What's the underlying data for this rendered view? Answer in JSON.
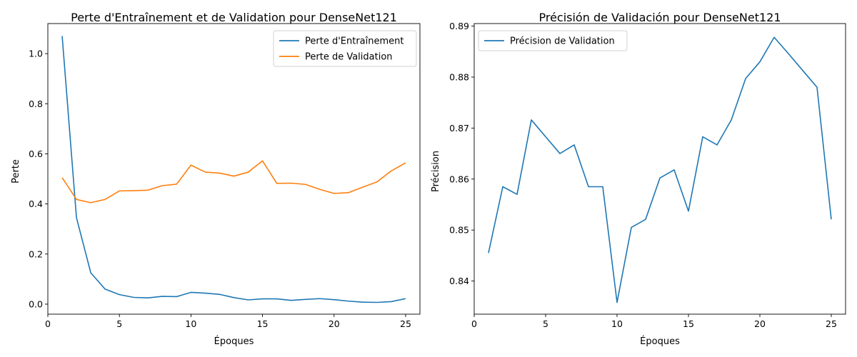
{
  "chart_data": [
    {
      "type": "line",
      "title": "Perte d'Entraînement et de Validation pour DenseNet121",
      "xlabel": "Époques",
      "ylabel": "Perte",
      "xlim": [
        0,
        26
      ],
      "ylim": [
        -0.04,
        1.12
      ],
      "xticks": [
        0,
        5,
        10,
        15,
        20,
        25
      ],
      "yticks": [
        0.0,
        0.2,
        0.4,
        0.6,
        0.8,
        1.0
      ],
      "grid": false,
      "legend_position": "top-right",
      "x": [
        1,
        2,
        3,
        4,
        5,
        6,
        7,
        8,
        9,
        10,
        11,
        12,
        13,
        14,
        15,
        16,
        17,
        18,
        19,
        20,
        21,
        22,
        23,
        24,
        25
      ],
      "series": [
        {
          "name": "Perte d'Entraînement",
          "color": "#1f77b4",
          "values": [
            1.07,
            0.345,
            0.125,
            0.06,
            0.038,
            0.027,
            0.025,
            0.031,
            0.03,
            0.047,
            0.044,
            0.039,
            0.026,
            0.017,
            0.021,
            0.021,
            0.015,
            0.019,
            0.022,
            0.018,
            0.012,
            0.008,
            0.007,
            0.01,
            0.022
          ]
        },
        {
          "name": "Perte de Validation",
          "color": "#ff7f0e",
          "values": [
            0.505,
            0.418,
            0.405,
            0.418,
            0.452,
            0.453,
            0.455,
            0.473,
            0.479,
            0.555,
            0.527,
            0.523,
            0.511,
            0.527,
            0.572,
            0.482,
            0.483,
            0.478,
            0.458,
            0.442,
            0.445,
            0.467,
            0.488,
            0.532,
            0.564
          ]
        }
      ]
    },
    {
      "type": "line",
      "title": "Précisión de Validación pour DenseNet121",
      "xlabel": "Époques",
      "ylabel": "Précision",
      "xlim": [
        0,
        26
      ],
      "ylim": [
        0.8335,
        0.8905
      ],
      "xticks": [
        0,
        5,
        10,
        15,
        20,
        25
      ],
      "yticks": [
        0.84,
        0.85,
        0.86,
        0.87,
        0.88,
        0.89
      ],
      "grid": false,
      "legend_position": "top-left",
      "x": [
        1,
        2,
        3,
        4,
        5,
        6,
        7,
        8,
        9,
        10,
        11,
        12,
        13,
        14,
        15,
        16,
        17,
        18,
        19,
        20,
        21,
        22,
        23,
        24,
        25
      ],
      "series": [
        {
          "name": "Précision de Validation",
          "color": "#1f77b4",
          "values": [
            0.8455,
            0.8585,
            0.857,
            0.8716,
            0.8683,
            0.865,
            0.8667,
            0.8585,
            0.8585,
            0.8358,
            0.8505,
            0.8521,
            0.8602,
            0.8618,
            0.8537,
            0.8683,
            0.8667,
            0.8716,
            0.8797,
            0.883,
            0.8878,
            0.8846,
            0.8813,
            0.878,
            0.8521
          ]
        }
      ]
    }
  ]
}
